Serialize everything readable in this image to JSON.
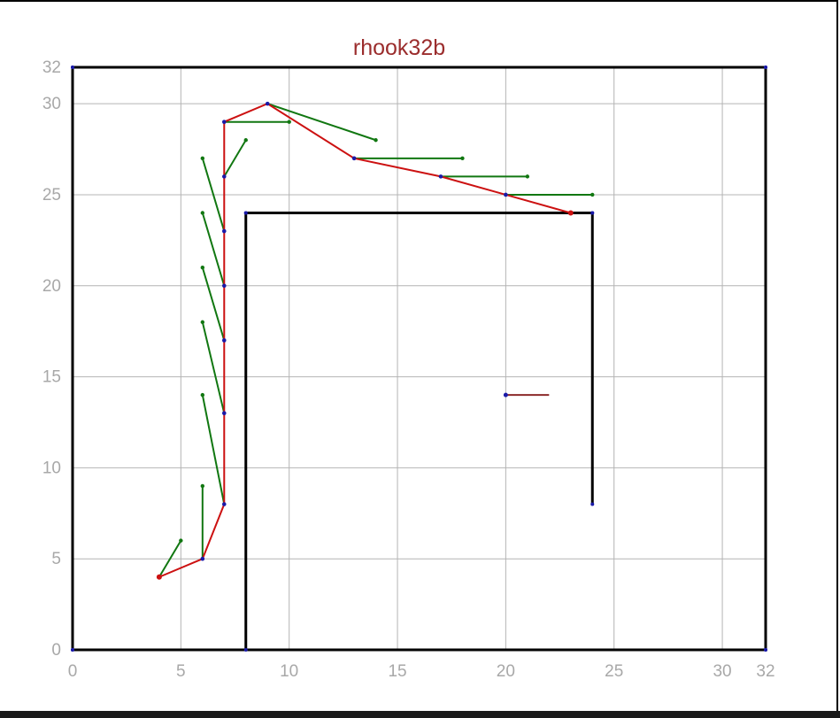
{
  "chart_data": {
    "type": "line",
    "title": "rhook32b",
    "xlim": [
      0,
      32
    ],
    "ylim": [
      0,
      32
    ],
    "grid": true,
    "x_tick_labels": [
      "0",
      "5",
      "10",
      "15",
      "20",
      "25",
      "30",
      "32"
    ],
    "x_tick_values": [
      0,
      5,
      10,
      15,
      20,
      25,
      30,
      32
    ],
    "y_tick_labels": [
      "0",
      "5",
      "10",
      "15",
      "20",
      "25",
      "30",
      "32"
    ],
    "y_tick_values": [
      0,
      5,
      10,
      15,
      20,
      25,
      30,
      32
    ],
    "walls": [
      [
        [
          0,
          0
        ],
        [
          32,
          0
        ]
      ],
      [
        [
          0,
          32
        ],
        [
          32,
          32
        ]
      ],
      [
        [
          0,
          0
        ],
        [
          0,
          32
        ]
      ],
      [
        [
          32,
          0
        ],
        [
          32,
          32
        ]
      ],
      [
        [
          8,
          0
        ],
        [
          8,
          24
        ]
      ],
      [
        [
          8,
          24
        ],
        [
          24,
          24
        ]
      ],
      [
        [
          24,
          24
        ],
        [
          24,
          8
        ]
      ]
    ],
    "path": [
      [
        4,
        4
      ],
      [
        6,
        5
      ],
      [
        7,
        8
      ],
      [
        7,
        13
      ],
      [
        7,
        17
      ],
      [
        7,
        20
      ],
      [
        7,
        23
      ],
      [
        7,
        26
      ],
      [
        7,
        29
      ],
      [
        9,
        30
      ],
      [
        13,
        27
      ],
      [
        17,
        26
      ],
      [
        20,
        25
      ],
      [
        23,
        24
      ]
    ],
    "vectors": [
      [
        [
          4,
          4
        ],
        [
          5,
          6
        ]
      ],
      [
        [
          6,
          5
        ],
        [
          6,
          9
        ]
      ],
      [
        [
          7,
          8
        ],
        [
          6,
          14
        ]
      ],
      [
        [
          7,
          13
        ],
        [
          6,
          18
        ]
      ],
      [
        [
          7,
          17
        ],
        [
          6,
          21
        ]
      ],
      [
        [
          7,
          20
        ],
        [
          6,
          24
        ]
      ],
      [
        [
          7,
          23
        ],
        [
          6,
          27
        ]
      ],
      [
        [
          7,
          26
        ],
        [
          8,
          28
        ]
      ],
      [
        [
          7,
          29
        ],
        [
          10,
          29
        ]
      ],
      [
        [
          9,
          30
        ],
        [
          14,
          28
        ]
      ],
      [
        [
          13,
          27
        ],
        [
          18,
          27
        ]
      ],
      [
        [
          17,
          26
        ],
        [
          21,
          26
        ]
      ],
      [
        [
          20,
          25
        ],
        [
          24,
          25
        ]
      ]
    ],
    "target": {
      "from": [
        20,
        14
      ],
      "to": [
        22,
        14
      ]
    },
    "colors": {
      "wall": "#000000",
      "path": "#cc1111",
      "vector": "#117711",
      "node": "#1a1aa8",
      "target": "#8b2a2a",
      "grid": "#b4b4b4"
    }
  }
}
